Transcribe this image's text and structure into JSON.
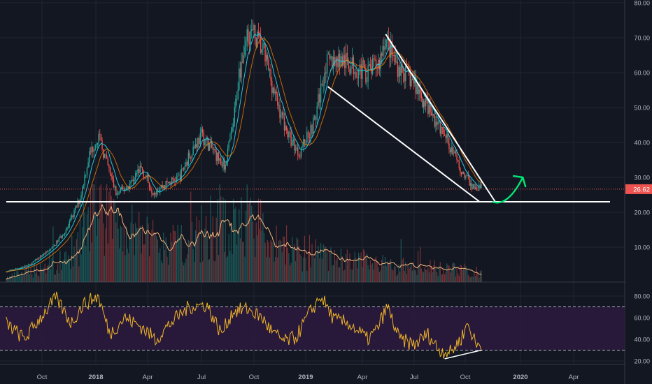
{
  "chart_data": [
    {
      "type": "candlestick",
      "description_role": "price panel with volume overlay and two moving averages",
      "x_range": [
        "2017-08",
        "2020-05"
      ],
      "x_ticks": [
        "Oct",
        "2018",
        "Apr",
        "Jul",
        "Oct",
        "2019",
        "Apr",
        "Jul",
        "Oct",
        "2020",
        "Apr"
      ],
      "ylim": [
        0,
        80
      ],
      "y_ticks": [
        10.0,
        20.0,
        30.0,
        40.0,
        50.0,
        60.0,
        70.0,
        80.0
      ],
      "y_tick_labels": [
        "10.00",
        "20.00",
        "30.00",
        "40.00",
        "50.00",
        "60.00",
        "70.00",
        "80.00"
      ],
      "last_price": 26.62,
      "last_price_label": "26.62",
      "price_anchors": [
        [
          "2017-08-01",
          3
        ],
        [
          "2017-09-10",
          5
        ],
        [
          "2017-10-20",
          10
        ],
        [
          "2017-11-15",
          16
        ],
        [
          "2017-12-05",
          24
        ],
        [
          "2017-12-20",
          36
        ],
        [
          "2018-01-05",
          42
        ],
        [
          "2018-01-20",
          34
        ],
        [
          "2018-02-06",
          25
        ],
        [
          "2018-03-01",
          28
        ],
        [
          "2018-03-20",
          33
        ],
        [
          "2018-04-10",
          26
        ],
        [
          "2018-05-01",
          28
        ],
        [
          "2018-05-25",
          30
        ],
        [
          "2018-06-15",
          38
        ],
        [
          "2018-07-01",
          42
        ],
        [
          "2018-07-20",
          38
        ],
        [
          "2018-08-10",
          33
        ],
        [
          "2018-08-25",
          44
        ],
        [
          "2018-09-05",
          60
        ],
        [
          "2018-09-20",
          72
        ],
        [
          "2018-10-05",
          70
        ],
        [
          "2018-10-20",
          65
        ],
        [
          "2018-11-10",
          52
        ],
        [
          "2018-12-01",
          42
        ],
        [
          "2018-12-20",
          37
        ],
        [
          "2019-01-15",
          46
        ],
        [
          "2019-02-01",
          62
        ],
        [
          "2019-02-20",
          64
        ],
        [
          "2019-03-15",
          62
        ],
        [
          "2019-04-10",
          60
        ],
        [
          "2019-05-01",
          63
        ],
        [
          "2019-05-10",
          70
        ],
        [
          "2019-06-01",
          62
        ],
        [
          "2019-07-01",
          57
        ],
        [
          "2019-08-01",
          48
        ],
        [
          "2019-09-01",
          40
        ],
        [
          "2019-09-20",
          33
        ],
        [
          "2019-10-15",
          27
        ]
      ],
      "volume_anchors": [
        [
          "2017-08-01",
          1
        ],
        [
          "2017-11-15",
          6
        ],
        [
          "2017-12-20",
          16
        ],
        [
          "2018-01-10",
          20
        ],
        [
          "2018-02-10",
          13
        ],
        [
          "2018-05-01",
          9
        ],
        [
          "2018-07-01",
          14
        ],
        [
          "2018-09-20",
          16
        ],
        [
          "2018-12-01",
          8
        ],
        [
          "2019-03-01",
          6
        ],
        [
          "2019-06-01",
          4
        ],
        [
          "2019-10-15",
          3
        ]
      ],
      "series": [
        {
          "role": "price_candles",
          "up_color": "#26a69a",
          "down_color": "#ef5350"
        },
        {
          "role": "moving_average_fast",
          "color": "#26c6da"
        },
        {
          "role": "moving_average_slow",
          "color": "#f57c00"
        },
        {
          "role": "volume_moving_average",
          "color": "#f0b27a"
        }
      ],
      "annotations": [
        {
          "type": "line",
          "color": "#ffffff",
          "from": [
            "2019-02-05",
            56
          ],
          "to": [
            "2019-10-25",
            23
          ]
        },
        {
          "type": "line",
          "color": "#ffffff",
          "from": [
            "2019-05-12",
            71
          ],
          "to": [
            "2019-11-20",
            23
          ]
        },
        {
          "type": "line",
          "color": "#ffffff",
          "from": [
            "2017-08-01",
            23
          ],
          "to": [
            "2020-06-10",
            23
          ]
        },
        {
          "type": "curved_arrow",
          "color": "#00e676",
          "from": [
            "2019-11-15",
            23
          ],
          "to": [
            "2020-01-05",
            30
          ]
        }
      ],
      "grid": true
    },
    {
      "type": "line",
      "description_role": "oscillator panel",
      "ylim": [
        15,
        90
      ],
      "y_ticks": [
        20.0,
        40.0,
        60.0,
        80.0
      ],
      "y_tick_labels": [
        "20.00",
        "40.00",
        "60.00",
        "80.00"
      ],
      "bands": {
        "upper": 70,
        "lower": 30,
        "fill_color": "#2b1a3d"
      },
      "series_color": "#f0b429",
      "rsi_anchors": [
        [
          "2017-08-01",
          55
        ],
        [
          "2017-09-01",
          40
        ],
        [
          "2017-10-01",
          62
        ],
        [
          "2017-10-25",
          78
        ],
        [
          "2017-11-20",
          55
        ],
        [
          "2017-12-10",
          72
        ],
        [
          "2018-01-05",
          80
        ],
        [
          "2018-01-25",
          45
        ],
        [
          "2018-02-20",
          60
        ],
        [
          "2018-03-20",
          52
        ],
        [
          "2018-04-15",
          40
        ],
        [
          "2018-05-10",
          55
        ],
        [
          "2018-06-10",
          70
        ],
        [
          "2018-07-10",
          72
        ],
        [
          "2018-08-05",
          45
        ],
        [
          "2018-08-25",
          66
        ],
        [
          "2018-09-20",
          68
        ],
        [
          "2018-10-15",
          60
        ],
        [
          "2018-11-05",
          45
        ],
        [
          "2018-11-25",
          38
        ],
        [
          "2018-12-15",
          42
        ],
        [
          "2019-01-05",
          62
        ],
        [
          "2019-01-25",
          80
        ],
        [
          "2019-02-15",
          58
        ],
        [
          "2019-03-10",
          55
        ],
        [
          "2019-04-10",
          40
        ],
        [
          "2019-04-25",
          48
        ],
        [
          "2019-05-15",
          70
        ],
        [
          "2019-06-05",
          40
        ],
        [
          "2019-07-01",
          35
        ],
        [
          "2019-07-25",
          45
        ],
        [
          "2019-08-15",
          30
        ],
        [
          "2019-09-05",
          28
        ],
        [
          "2019-09-25",
          42
        ],
        [
          "2019-10-05",
          55
        ],
        [
          "2019-10-20",
          34
        ],
        [
          "2019-10-28",
          35
        ]
      ],
      "annotations": [
        {
          "type": "line",
          "color": "#ffffff",
          "from": [
            "2019-08-25",
            22
          ],
          "to": [
            "2019-10-28",
            30
          ]
        }
      ]
    }
  ]
}
